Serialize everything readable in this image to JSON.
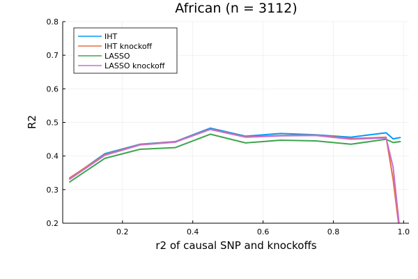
{
  "chart_data": {
    "type": "line",
    "title": "African (n = 3112)",
    "xlabel": "r2 of causal SNP and knockoffs",
    "ylabel": "R2",
    "xlim": [
      0.03,
      1.015
    ],
    "ylim": [
      0.2,
      0.8
    ],
    "xticks": [
      0.2,
      0.4,
      0.6,
      0.8,
      1.0
    ],
    "xtick_labels": [
      "0.2",
      "0.4",
      "0.6",
      "0.8",
      "1.0"
    ],
    "yticks": [
      0.2,
      0.3,
      0.4,
      0.5,
      0.6,
      0.7,
      0.8
    ],
    "ytick_labels": [
      "0.2",
      "0.3",
      "0.4",
      "0.5",
      "0.6",
      "0.7",
      "0.8"
    ],
    "grid": true,
    "legend_position": "top-left",
    "series": [
      {
        "name": "IHT",
        "color": "#009AFA",
        "x": [
          0.05,
          0.15,
          0.25,
          0.35,
          0.45,
          0.55,
          0.65,
          0.75,
          0.85,
          0.95,
          0.97,
          0.99
        ],
        "y": [
          0.333,
          0.407,
          0.435,
          0.443,
          0.483,
          0.459,
          0.467,
          0.463,
          0.456,
          0.469,
          0.451,
          0.455
        ]
      },
      {
        "name": "IHT knockoff",
        "color": "#E36F47",
        "x": [
          0.05,
          0.15,
          0.25,
          0.35,
          0.45,
          0.55,
          0.65,
          0.75,
          0.85,
          0.95,
          0.97,
          0.99
        ],
        "y": [
          0.335,
          0.404,
          0.434,
          0.442,
          0.48,
          0.457,
          0.461,
          0.462,
          0.452,
          0.456,
          0.33,
          0.16
        ]
      },
      {
        "name": "LASSO",
        "color": "#3EA44E",
        "x": [
          0.05,
          0.15,
          0.25,
          0.35,
          0.45,
          0.55,
          0.65,
          0.75,
          0.85,
          0.95,
          0.97,
          0.99
        ],
        "y": [
          0.323,
          0.393,
          0.42,
          0.425,
          0.465,
          0.439,
          0.447,
          0.445,
          0.435,
          0.45,
          0.44,
          0.443
        ]
      },
      {
        "name": "LASSO knockoff",
        "color": "#C371D2",
        "x": [
          0.05,
          0.15,
          0.25,
          0.35,
          0.45,
          0.55,
          0.65,
          0.75,
          0.85,
          0.95,
          0.97,
          0.99
        ],
        "y": [
          0.331,
          0.402,
          0.433,
          0.441,
          0.479,
          0.456,
          0.46,
          0.461,
          0.45,
          0.454,
          0.367,
          0.17
        ]
      }
    ]
  }
}
